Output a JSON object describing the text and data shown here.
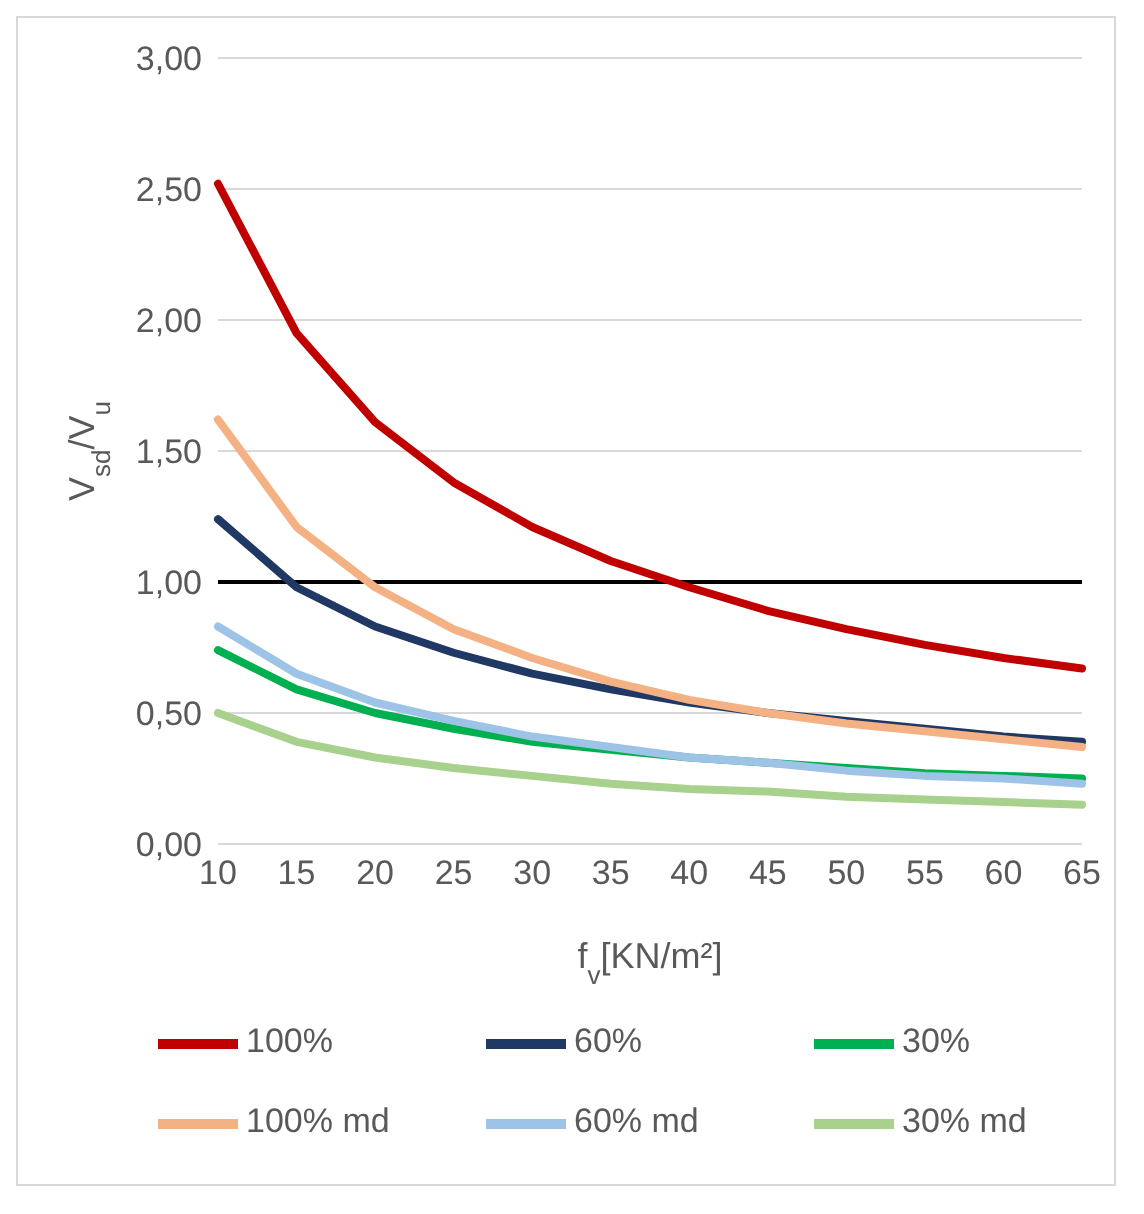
{
  "chart_data": {
    "type": "line",
    "xlabel": "f$_{v}$[KN/m²]",
    "ylabel": "V$_{sd}$/V$_{u}$",
    "categories": [
      "10",
      "15",
      "20",
      "25",
      "30",
      "35",
      "40",
      "45",
      "50",
      "55",
      "60",
      "65"
    ],
    "series": [
      {
        "name": "100%",
        "color": "#c00000",
        "values": [
          2.52,
          1.95,
          1.61,
          1.38,
          1.21,
          1.08,
          0.98,
          0.89,
          0.82,
          0.76,
          0.71,
          0.67
        ]
      },
      {
        "name": "60%",
        "color": "#1f3864",
        "values": [
          1.24,
          0.98,
          0.83,
          0.73,
          0.65,
          0.59,
          0.54,
          0.5,
          0.47,
          0.44,
          0.41,
          0.39
        ]
      },
      {
        "name": "30%",
        "color": "#00b050",
        "values": [
          0.74,
          0.59,
          0.5,
          0.44,
          0.39,
          0.36,
          0.33,
          0.31,
          0.29,
          0.27,
          0.26,
          0.25
        ]
      },
      {
        "name": "100% md",
        "color": "#f4b183",
        "values": [
          1.62,
          1.21,
          0.98,
          0.82,
          0.71,
          0.62,
          0.55,
          0.5,
          0.46,
          0.43,
          0.4,
          0.37
        ]
      },
      {
        "name": "60% md",
        "color": "#9dc3e6",
        "values": [
          0.83,
          0.65,
          0.54,
          0.47,
          0.41,
          0.37,
          0.33,
          0.31,
          0.28,
          0.26,
          0.25,
          0.23
        ]
      },
      {
        "name": "30% md",
        "color": "#a9d18e",
        "values": [
          0.5,
          0.39,
          0.33,
          0.29,
          0.26,
          0.23,
          0.21,
          0.2,
          0.18,
          0.17,
          0.16,
          0.15
        ]
      }
    ],
    "ylim": [
      0,
      3
    ],
    "yticks": [
      {
        "value": 0,
        "label": "0,00"
      },
      {
        "value": 0.5,
        "label": "0,50"
      },
      {
        "value": 1,
        "label": "1,00"
      },
      {
        "value": 1.5,
        "label": "1,50"
      },
      {
        "value": 2,
        "label": "2,00"
      },
      {
        "value": 2.5,
        "label": "2,50"
      },
      {
        "value": 3,
        "label": "3,00"
      }
    ],
    "ref_lines": [
      {
        "axis": "y",
        "value": 1,
        "label": null,
        "color": "#000000"
      }
    ],
    "grid": "y",
    "legend": "bottom",
    "marker": "none",
    "line_style": "solid"
  }
}
